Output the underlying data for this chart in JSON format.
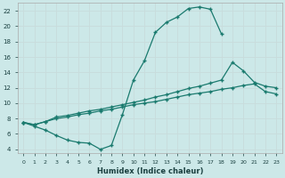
{
  "xlabel": "Humidex (Indice chaleur)",
  "bg_color": "#cce8e8",
  "grid_color": "#b0d8d8",
  "line_color": "#1a7a6e",
  "xlim": [
    -0.5,
    23.5
  ],
  "ylim": [
    3.5,
    23.0
  ],
  "xticks": [
    0,
    1,
    2,
    3,
    4,
    5,
    6,
    7,
    8,
    9,
    10,
    11,
    12,
    13,
    14,
    15,
    16,
    17,
    18,
    19,
    20,
    21,
    22,
    23
  ],
  "yticks": [
    4,
    6,
    8,
    10,
    12,
    14,
    16,
    18,
    20,
    22
  ],
  "line1": {
    "x": [
      0,
      1,
      2,
      3,
      4,
      5,
      6,
      7,
      8,
      9,
      10,
      11,
      12,
      13,
      14,
      15,
      16,
      17,
      18
    ],
    "y": [
      7.5,
      7.0,
      6.5,
      5.8,
      5.2,
      4.9,
      4.8,
      4.0,
      4.5,
      8.5,
      13.0,
      15.5,
      19.2,
      20.5,
      21.2,
      22.3,
      22.5,
      22.2,
      19.0
    ]
  },
  "line2": {
    "x": [
      0,
      1,
      2,
      3,
      4,
      5,
      6,
      7,
      8,
      9,
      10,
      11,
      12,
      13,
      14,
      15,
      16,
      17,
      18,
      19,
      20,
      21,
      22,
      23
    ],
    "y": [
      7.5,
      7.2,
      7.6,
      8.2,
      8.4,
      8.7,
      9.0,
      9.2,
      9.5,
      9.8,
      10.1,
      10.4,
      10.8,
      11.1,
      11.5,
      11.9,
      12.2,
      12.6,
      13.0,
      15.3,
      14.2,
      12.7,
      12.2,
      12.0
    ]
  },
  "line3": {
    "x": [
      0,
      1,
      2,
      3,
      4,
      5,
      6,
      7,
      8,
      9,
      10,
      11,
      12,
      13,
      14,
      15,
      16,
      17,
      18,
      19,
      20,
      21,
      22,
      23
    ],
    "y": [
      7.5,
      7.2,
      7.6,
      8.0,
      8.2,
      8.5,
      8.7,
      9.0,
      9.2,
      9.5,
      9.8,
      10.0,
      10.2,
      10.5,
      10.8,
      11.1,
      11.3,
      11.5,
      11.8,
      12.0,
      12.3,
      12.5,
      11.5,
      11.2
    ]
  }
}
